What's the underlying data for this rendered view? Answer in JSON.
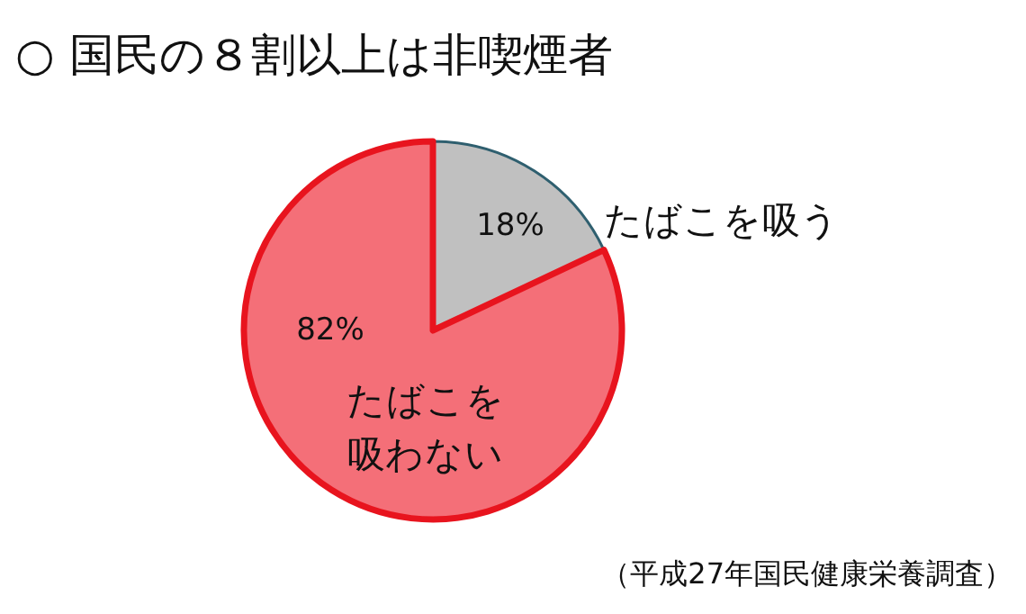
{
  "chart_data": {
    "type": "pie",
    "title": "○ 国民の８割以上は非喫煙者",
    "categories": [
      "たばこを吸う",
      "たばこを吸わない"
    ],
    "values": [
      18,
      82
    ],
    "colors": [
      "#c0c0c0",
      "#f46f78"
    ],
    "value_labels": [
      "18%",
      "82%"
    ],
    "annotations": [
      "（平成27年国民健康栄養調査）"
    ]
  }
}
